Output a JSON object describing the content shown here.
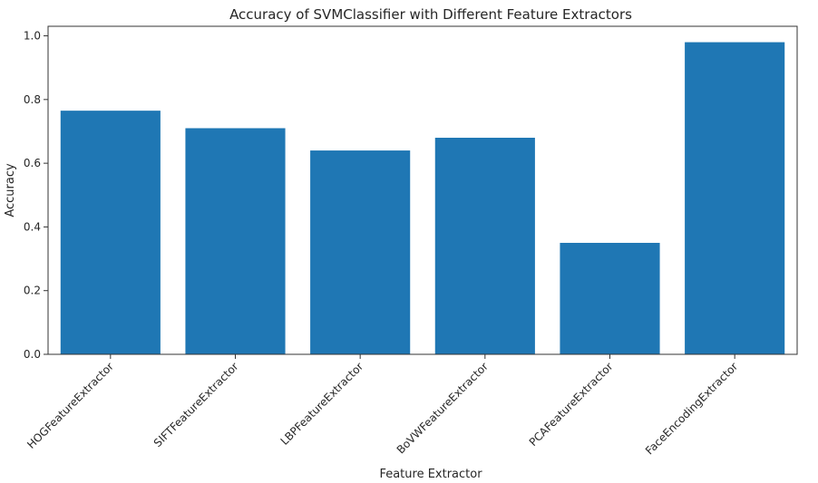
{
  "chart_data": {
    "type": "bar",
    "title": "Accuracy of SVMClassifier with Different Feature Extractors",
    "xlabel": "Feature Extractor",
    "ylabel": "Accuracy",
    "categories": [
      "HOGFeatureExtractor",
      "SIFTFeatureExtractor",
      "LBPFeatureExtractor",
      "BoVWFeatureExtractor",
      "PCAFeatureExtractor",
      "FaceEncodingExtractor"
    ],
    "values": [
      0.765,
      0.71,
      0.64,
      0.68,
      0.35,
      0.98
    ],
    "ylim": [
      0,
      1.03
    ],
    "yticks": [
      "0.0",
      "0.2",
      "0.4",
      "0.6",
      "0.8",
      "1.0"
    ],
    "grid": false,
    "bar_color": "#1f77b4"
  }
}
